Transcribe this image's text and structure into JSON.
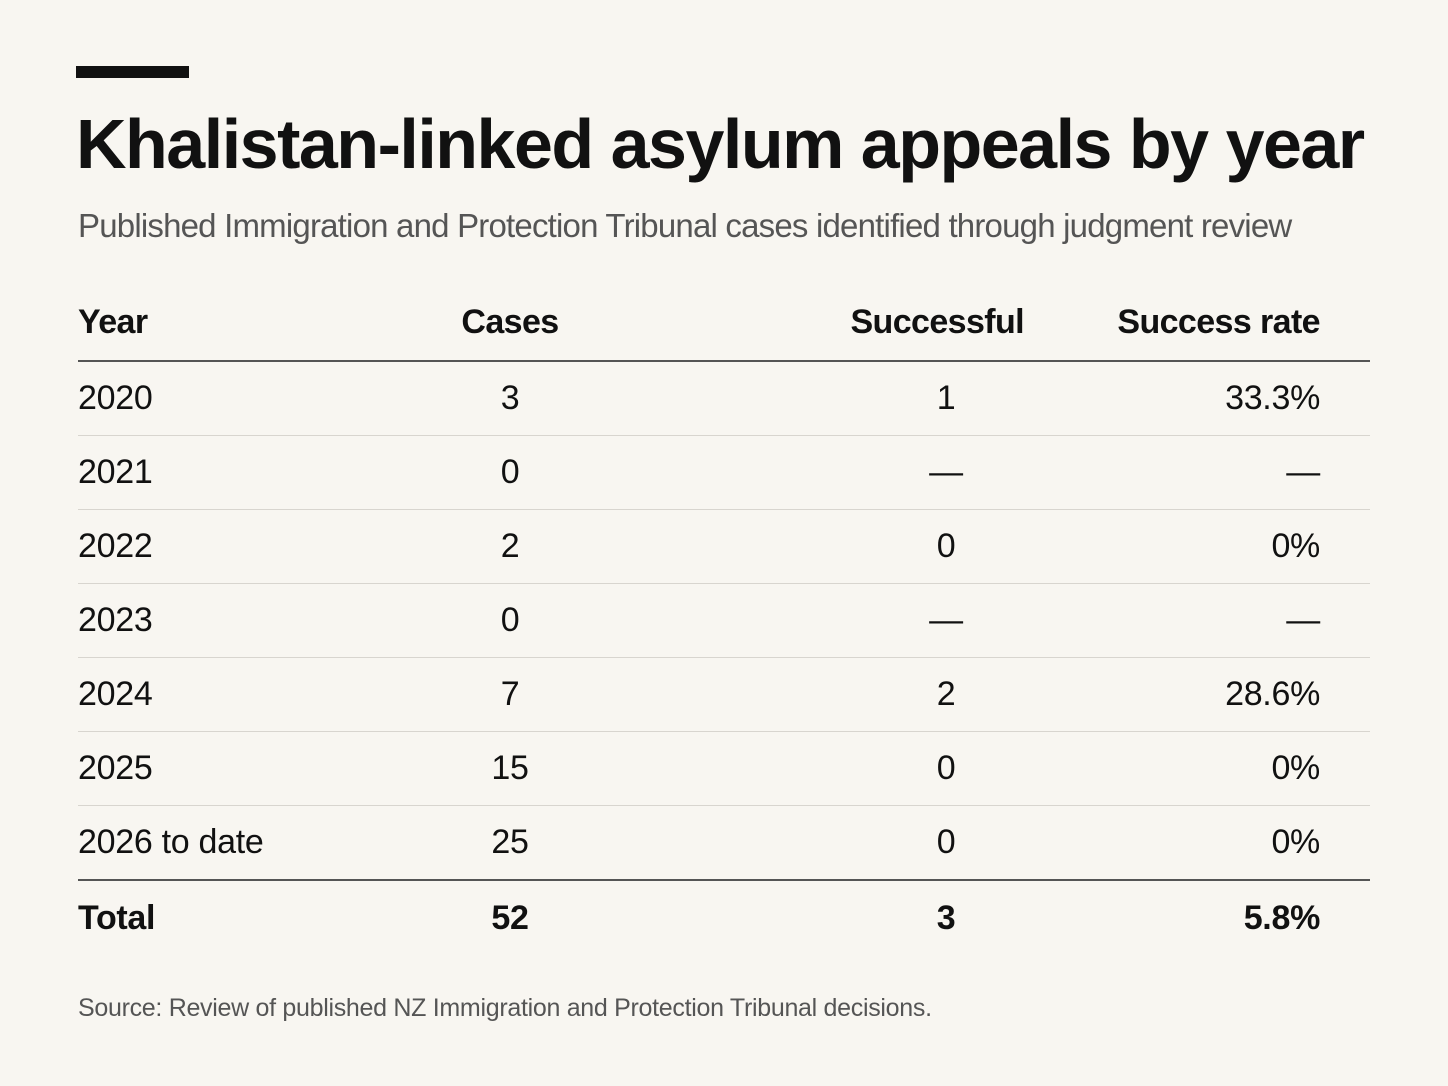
{
  "title": "Khalistan-linked asylum appeals by year",
  "subtitle": "Published Immigration and Protection Tribunal cases identified through judgment review",
  "source": "Source: Review of published NZ Immigration and Protection Tribunal decisions.",
  "colors": {
    "background": "#f8f6f1",
    "text": "#111111",
    "muted": "#555555",
    "rule": "#d8d5cf"
  },
  "chart_data": {
    "type": "table",
    "title": "Khalistan-linked asylum appeals by year",
    "subtitle": "Published Immigration and Protection Tribunal cases identified through judgment review",
    "columns": [
      "Year",
      "Cases",
      "Successful",
      "Success rate"
    ],
    "rows": [
      [
        "2020",
        "3",
        "1",
        "33.3%"
      ],
      [
        "2021",
        "0",
        "—",
        "—"
      ],
      [
        "2022",
        "2",
        "0",
        "0%"
      ],
      [
        "2023",
        "0",
        "—",
        "—"
      ],
      [
        "2024",
        "7",
        "2",
        "28.6%"
      ],
      [
        "2025",
        "15",
        "0",
        "0%"
      ],
      [
        "2026 to date",
        "25",
        "0",
        "0%"
      ]
    ],
    "total": [
      "Total",
      "52",
      "3",
      "5.8%"
    ]
  }
}
